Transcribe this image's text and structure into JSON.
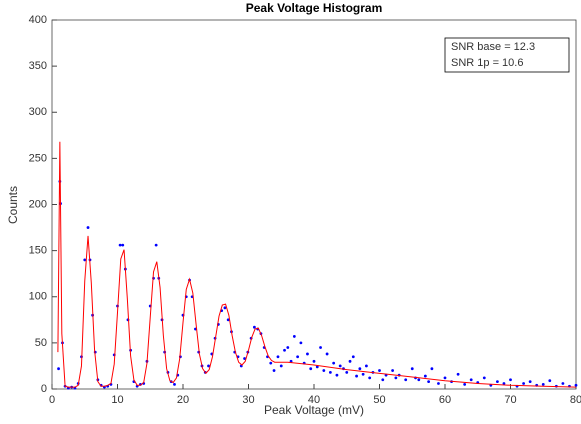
{
  "chart_data": {
    "type": "scatter",
    "title": "Peak Voltage Histogram",
    "x_label": "Peak Voltage (mV)",
    "y_label": "Counts",
    "annotations": [
      "SNR base = 12.3",
      "SNR 1p = 10.6"
    ],
    "xlim": [
      0,
      80
    ],
    "xticks": [
      0,
      10,
      20,
      30,
      40,
      50,
      60,
      70,
      80
    ],
    "ylim": [
      0,
      400
    ],
    "yticks": [
      0,
      50,
      100,
      150,
      200,
      250,
      300,
      350,
      400
    ],
    "series": [
      {
        "kind": "markers",
        "color": "#0000ff",
        "x": [
          1.0,
          1.2,
          1.3,
          1.6,
          2,
          2.5,
          3,
          3.5,
          4,
          4.5,
          5,
          5.5,
          5.8,
          6.2,
          6.6,
          7,
          7.5,
          8,
          8.5,
          9,
          9.5,
          10,
          10.4,
          10.8,
          11.2,
          11.6,
          12,
          12.5,
          13,
          13.5,
          14,
          14.5,
          15,
          15.5,
          15.9,
          16.3,
          16.8,
          17.2,
          17.7,
          18.2,
          18.7,
          19.2,
          19.6,
          20,
          20.5,
          21,
          21.4,
          21.9,
          22.4,
          22.9,
          23.4,
          23.9,
          24.4,
          24.9,
          25.4,
          25.9,
          26.4,
          26.9,
          27.4,
          27.9,
          28.4,
          28.9,
          29.4,
          29.9,
          30.4,
          30.9,
          31.4,
          31.9,
          32.4,
          32.9,
          33.4,
          33.9,
          34.5,
          35,
          35.5,
          36,
          36.5,
          37,
          37.5,
          38,
          38.5,
          39,
          39.5,
          40,
          40.5,
          41,
          41.5,
          42,
          42.5,
          43,
          43.5,
          44,
          44.5,
          45,
          45.5,
          46,
          46.5,
          47,
          47.5,
          48,
          48.5,
          49,
          50,
          50.5,
          51,
          52,
          52.5,
          53,
          54,
          55,
          55.5,
          56,
          57,
          57.5,
          58,
          59,
          60,
          61,
          62,
          63,
          64,
          65,
          66,
          67,
          68,
          69,
          70,
          71,
          72,
          73,
          74,
          75,
          76,
          77,
          78,
          79,
          80
        ],
        "values": [
          22,
          225,
          201,
          50,
          3,
          1,
          2,
          1,
          6,
          35,
          140,
          175,
          140,
          80,
          40,
          10,
          4,
          2,
          3,
          5,
          37,
          90,
          156,
          156,
          130,
          75,
          42,
          8,
          3,
          5,
          6,
          30,
          90,
          120,
          156,
          120,
          75,
          40,
          18,
          8,
          5,
          15,
          35,
          80,
          100,
          118,
          100,
          65,
          40,
          25,
          18,
          25,
          38,
          55,
          70,
          85,
          88,
          75,
          62,
          40,
          35,
          25,
          33,
          40,
          55,
          67,
          65,
          60,
          45,
          35,
          28,
          20,
          35,
          25,
          42,
          45,
          30,
          57,
          35,
          50,
          28,
          38,
          22,
          30,
          24,
          45,
          20,
          38,
          18,
          28,
          15,
          25,
          22,
          18,
          30,
          35,
          14,
          22,
          16,
          25,
          12,
          18,
          20,
          10,
          15,
          20,
          12,
          15,
          10,
          22,
          12,
          10,
          14,
          8,
          22,
          6,
          12,
          8,
          16,
          5,
          10,
          7,
          12,
          4,
          8,
          6,
          10,
          3,
          6,
          8,
          4,
          5,
          9,
          3,
          6,
          3,
          4
        ]
      },
      {
        "kind": "line",
        "color": "#ff0000",
        "x": [
          0.9,
          1.2,
          1.5,
          2,
          2.5,
          3,
          3.5,
          4,
          4.5,
          5,
          5.5,
          6,
          6.5,
          7,
          7.5,
          8,
          8.5,
          9,
          9.5,
          10,
          10.5,
          11,
          11.5,
          12,
          12.5,
          13,
          13.5,
          14,
          14.5,
          15,
          15.5,
          16,
          16.5,
          17,
          17.5,
          18,
          18.5,
          19,
          19.5,
          20,
          20.5,
          21,
          21.5,
          22,
          22.5,
          23,
          23.5,
          24,
          24.5,
          25,
          25.5,
          26,
          26.5,
          27,
          27.5,
          28,
          28.5,
          29,
          29.5,
          30,
          30.5,
          31,
          31.5,
          32,
          32.5,
          33,
          33.5,
          34,
          36,
          40,
          45,
          50,
          55,
          60,
          65,
          70,
          75,
          80
        ],
        "values": [
          40,
          268,
          60,
          3,
          2,
          2,
          2,
          4,
          25,
          117,
          166,
          115,
          42,
          8,
          3,
          3,
          4,
          6,
          27,
          83,
          141,
          151,
          98,
          36,
          10,
          4,
          4,
          7,
          28,
          78,
          127,
          138,
          110,
          58,
          22,
          9,
          7,
          12,
          33,
          72,
          108,
          119,
          104,
          70,
          38,
          22,
          17,
          21,
          35,
          57,
          79,
          91,
          92,
          80,
          58,
          40,
          29,
          26,
          30,
          42,
          56,
          65,
          66,
          58,
          46,
          36,
          31,
          29,
          29,
          26,
          21,
          17,
          13,
          9,
          6,
          4,
          3,
          2
        ]
      }
    ]
  }
}
